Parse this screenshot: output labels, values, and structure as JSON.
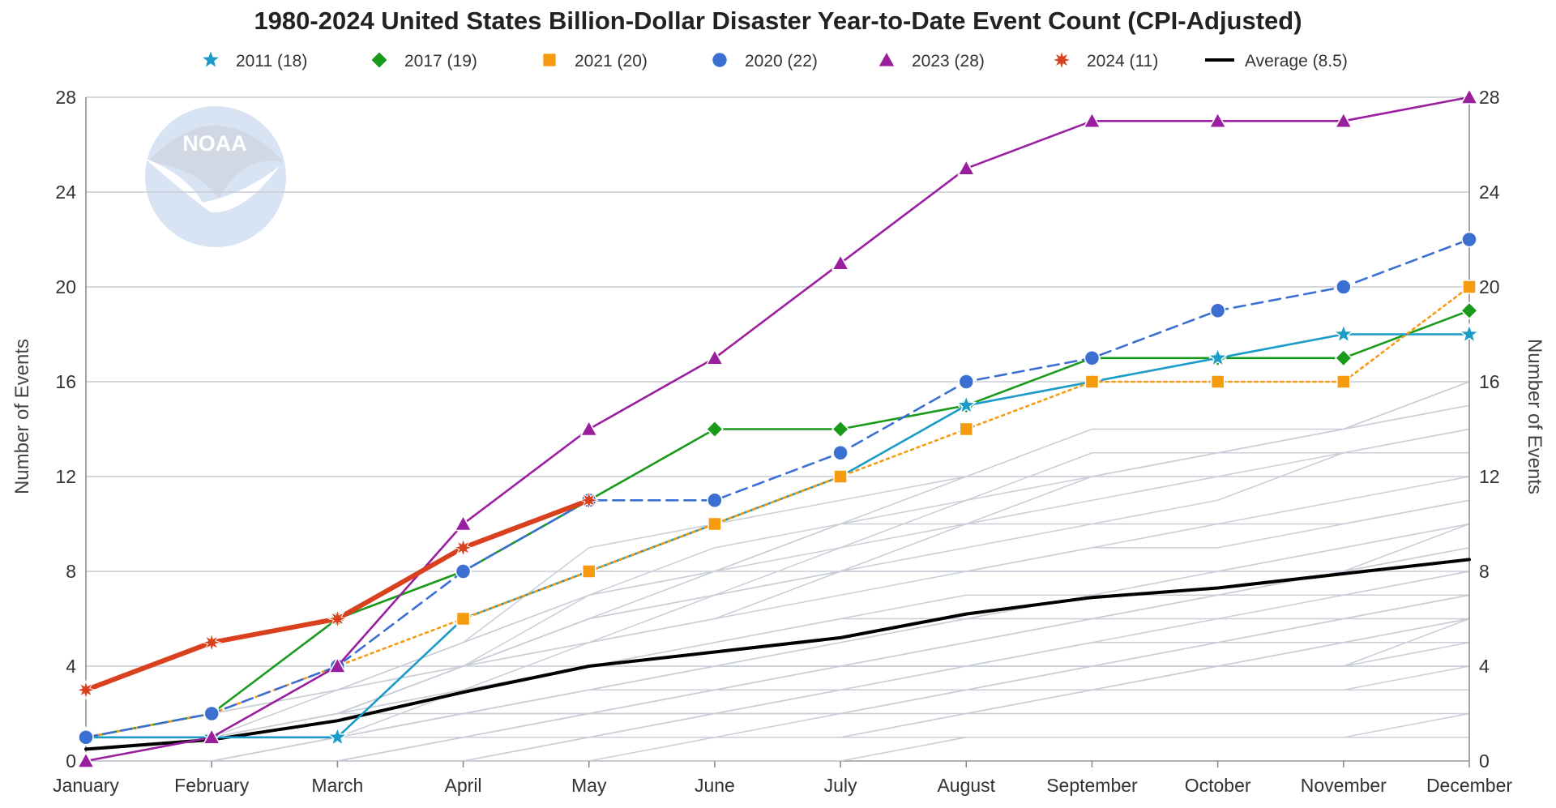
{
  "chart_data": {
    "type": "line",
    "title": "1980-2024 United States Billion-Dollar Disaster Year-to-Date Event Count (CPI-Adjusted)",
    "xlabel": "",
    "ylabel": "Number of Events",
    "ylabel_right": "Number of Events",
    "categories": [
      "January",
      "February",
      "March",
      "April",
      "May",
      "June",
      "July",
      "August",
      "September",
      "October",
      "November",
      "December"
    ],
    "ylim": [
      0,
      28
    ],
    "yticks": [
      "0",
      "4",
      "8",
      "12",
      "16",
      "20",
      "24",
      "28"
    ],
    "grid": true,
    "legend_position": "top",
    "watermark": "NOAA",
    "series": [
      {
        "name": "2011 (18)",
        "color": "#1a9bc8",
        "marker": "star",
        "dash": "solid",
        "values": [
          1,
          1,
          1,
          6,
          8,
          10,
          12,
          15,
          16,
          17,
          18,
          18
        ]
      },
      {
        "name": "2017 (19)",
        "color": "#1a9a1a",
        "marker": "diamond",
        "dash": "solid",
        "values": [
          1,
          2,
          6,
          8,
          11,
          14,
          14,
          15,
          17,
          17,
          17,
          19
        ]
      },
      {
        "name": "2021 (20)",
        "color": "#f59b0f",
        "marker": "square",
        "dash": "dotted",
        "values": [
          1,
          2,
          4,
          6,
          8,
          10,
          12,
          14,
          16,
          16,
          16,
          20
        ]
      },
      {
        "name": "2020 (22)",
        "color": "#3b6fd1",
        "marker": "circle",
        "dash": "dashed",
        "values": [
          1,
          2,
          4,
          8,
          11,
          11,
          13,
          16,
          17,
          19,
          20,
          22
        ]
      },
      {
        "name": "2023 (28)",
        "color": "#9a1f9e",
        "marker": "triangle",
        "dash": "solid",
        "values": [
          0,
          1,
          4,
          10,
          14,
          17,
          21,
          25,
          27,
          27,
          27,
          28
        ]
      },
      {
        "name": "2024 (11)",
        "color": "#d9401e",
        "marker": "burst",
        "dash": "solid",
        "values": [
          3,
          5,
          6,
          9,
          11,
          null,
          null,
          null,
          null,
          null,
          null,
          null
        ]
      },
      {
        "name": "Average (8.5)",
        "color": "#000000",
        "marker": "none",
        "dash": "solid",
        "values": [
          0.5,
          0.9,
          1.7,
          2.9,
          4.0,
          4.6,
          5.2,
          6.2,
          6.9,
          7.3,
          7.9,
          8.5
        ]
      }
    ],
    "background_years": [
      [
        0,
        0,
        0,
        0,
        1,
        1,
        2,
        3,
        3,
        3,
        3,
        4
      ],
      [
        0,
        0,
        1,
        1,
        1,
        2,
        2,
        2,
        2,
        2,
        2,
        2
      ],
      [
        0,
        0,
        0,
        1,
        1,
        1,
        1,
        1,
        1,
        1,
        1,
        1
      ],
      [
        0,
        0,
        0,
        0,
        0,
        1,
        1,
        2,
        3,
        4,
        5,
        6
      ],
      [
        0,
        0,
        0,
        1,
        2,
        3,
        3,
        3,
        3,
        3,
        3,
        3
      ],
      [
        0,
        1,
        1,
        1,
        2,
        2,
        3,
        3,
        3,
        4,
        5,
        5
      ],
      [
        0,
        0,
        0,
        1,
        1,
        2,
        3,
        3,
        4,
        4,
        5,
        6
      ],
      [
        0,
        0,
        1,
        2,
        2,
        3,
        4,
        4,
        4,
        5,
        5,
        6
      ],
      [
        0,
        0,
        0,
        1,
        2,
        2,
        2,
        3,
        4,
        5,
        6,
        7
      ],
      [
        0,
        0,
        1,
        1,
        2,
        3,
        4,
        5,
        6,
        6,
        6,
        6
      ],
      [
        0,
        1,
        1,
        2,
        3,
        4,
        4,
        5,
        6,
        7,
        7,
        8
      ],
      [
        0,
        0,
        1,
        2,
        3,
        4,
        5,
        6,
        7,
        8,
        9,
        10
      ],
      [
        0,
        1,
        2,
        3,
        4,
        5,
        6,
        6,
        7,
        7,
        8,
        9
      ],
      [
        0,
        1,
        1,
        3,
        5,
        6,
        7,
        8,
        9,
        9,
        10,
        11
      ],
      [
        0,
        1,
        2,
        4,
        6,
        7,
        8,
        8,
        8,
        8,
        9,
        10
      ],
      [
        1,
        1,
        2,
        3,
        4,
        5,
        6,
        7,
        7,
        7,
        7,
        7
      ],
      [
        1,
        2,
        3,
        4,
        6,
        7,
        8,
        8,
        9,
        10,
        10,
        11
      ],
      [
        0,
        1,
        2,
        4,
        5,
        6,
        8,
        10,
        11,
        12,
        13,
        14
      ],
      [
        1,
        2,
        3,
        4,
        6,
        7,
        8,
        9,
        10,
        11,
        13,
        13
      ],
      [
        0,
        1,
        2,
        4,
        7,
        9,
        10,
        10,
        12,
        13,
        14,
        15
      ],
      [
        1,
        2,
        3,
        5,
        7,
        8,
        10,
        11,
        13,
        13,
        13,
        14
      ],
      [
        0,
        1,
        2,
        4,
        6,
        8,
        10,
        12,
        14,
        14,
        14,
        16
      ],
      [
        1,
        2,
        3,
        5,
        9,
        10,
        11,
        12,
        12,
        13,
        14,
        15
      ],
      [
        0,
        1,
        2,
        4,
        5,
        7,
        9,
        11,
        12,
        13,
        14,
        16
      ],
      [
        1,
        1,
        3,
        5,
        7,
        8,
        9,
        10,
        10,
        10,
        11,
        12
      ],
      [
        0,
        0,
        1,
        1,
        2,
        2,
        3,
        4,
        5,
        5,
        6,
        7
      ],
      [
        0,
        1,
        1,
        2,
        3,
        3,
        4,
        4,
        4,
        4,
        4,
        4
      ],
      [
        0,
        0,
        0,
        0,
        1,
        1,
        1,
        2,
        3,
        3,
        3,
        3
      ],
      [
        0,
        0,
        0,
        0,
        0,
        0,
        0,
        1,
        1,
        1,
        1,
        2
      ],
      [
        0,
        0,
        1,
        1,
        1,
        2,
        2,
        3,
        3,
        4,
        4,
        5
      ],
      [
        0,
        1,
        2,
        2,
        3,
        3,
        3,
        3,
        4,
        4,
        4,
        6
      ],
      [
        0,
        0,
        1,
        2,
        2,
        3,
        4,
        4,
        5,
        5,
        6,
        7
      ],
      [
        0,
        1,
        1,
        2,
        2,
        3,
        3,
        4,
        5,
        6,
        7,
        8
      ],
      [
        0,
        1,
        1,
        2,
        3,
        4,
        5,
        6,
        6,
        7,
        8,
        9
      ],
      [
        0,
        0,
        1,
        2,
        3,
        4,
        4,
        5,
        6,
        7,
        8,
        10
      ]
    ]
  }
}
